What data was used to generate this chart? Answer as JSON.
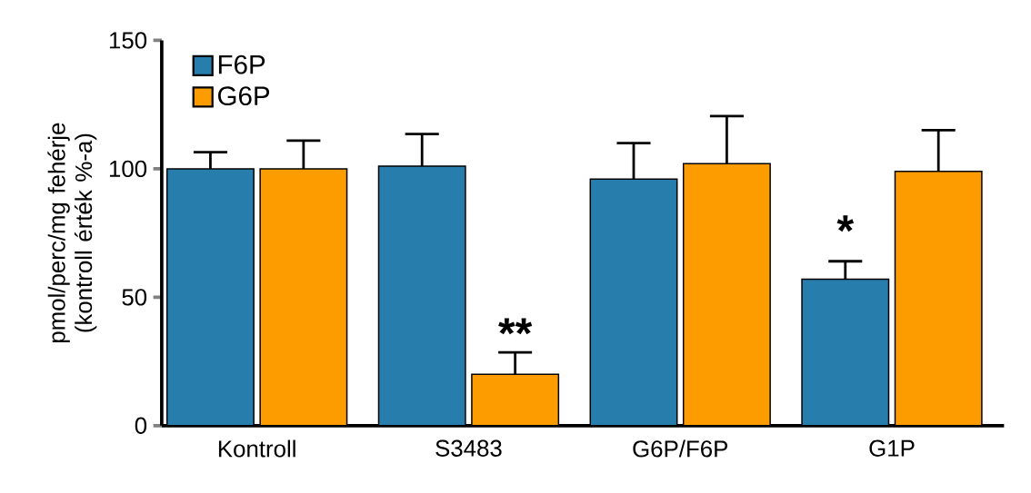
{
  "chart_data": {
    "type": "bar",
    "ylabel": "pmol/perc/mg fehérje (kontroll érték %-a)",
    "categories": [
      "Kontroll",
      "S3483",
      "G6P/F6P",
      "G1P"
    ],
    "series": [
      {
        "name": "F6P",
        "color": "#277dab",
        "values": [
          100,
          101,
          96,
          57
        ],
        "errors": [
          6.5,
          12.5,
          14,
          7
        ]
      },
      {
        "name": "G6P",
        "color": "#fd9c00",
        "values": [
          100,
          20,
          102,
          99
        ],
        "errors": [
          11,
          8.5,
          18.5,
          16
        ]
      }
    ],
    "ylim": [
      0,
      150
    ],
    "yticks": [
      0,
      50,
      100,
      150
    ],
    "legend": "top left",
    "annotations": [
      {
        "text": "**",
        "x": "S3483",
        "y": 36
      },
      {
        "text": "*",
        "x": "G1P",
        "y": 76
      }
    ]
  }
}
